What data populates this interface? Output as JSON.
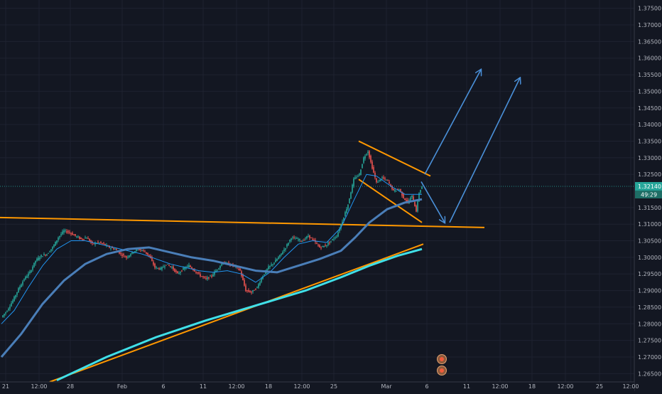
{
  "chart_data": {
    "type": "candlestick",
    "title": "",
    "ylim": [
      1.2625,
      1.3775
    ],
    "y_ticks": [
      1.265,
      1.27,
      1.275,
      1.28,
      1.285,
      1.29,
      1.295,
      1.3,
      1.305,
      1.31,
      1.315,
      1.325,
      1.33,
      1.335,
      1.34,
      1.345,
      1.35,
      1.355,
      1.36,
      1.365,
      1.37,
      1.375
    ],
    "y_tick_labels": [
      "1.26500",
      "1.27000",
      "1.27500",
      "1.28000",
      "1.28500",
      "1.29000",
      "1.29500",
      "1.30000",
      "1.30500",
      "1.31000",
      "1.31500",
      "1.32500",
      "1.33000",
      "1.33500",
      "1.34000",
      "1.34500",
      "1.35000",
      "1.35500",
      "1.36000",
      "1.36500",
      "1.37000",
      "1.37500"
    ],
    "x_ticks": [
      {
        "label": "21",
        "pos": 8
      },
      {
        "label": "12:00",
        "pos": 55
      },
      {
        "label": "28",
        "pos": 99
      },
      {
        "label": "Feb",
        "pos": 172
      },
      {
        "label": "6",
        "pos": 230
      },
      {
        "label": "11",
        "pos": 286
      },
      {
        "label": "12:00",
        "pos": 333
      },
      {
        "label": "18",
        "pos": 378
      },
      {
        "label": "12:00",
        "pos": 425
      },
      {
        "label": "25",
        "pos": 470
      },
      {
        "label": "Mar",
        "pos": 544
      },
      {
        "label": "6",
        "pos": 601
      },
      {
        "label": "11",
        "pos": 657
      },
      {
        "label": "12:00",
        "pos": 704
      },
      {
        "label": "18",
        "pos": 749
      },
      {
        "label": "12:00",
        "pos": 796
      },
      {
        "label": "25",
        "pos": 844
      },
      {
        "label": "12:00",
        "pos": 888
      }
    ],
    "last_price": {
      "label": "1.32140",
      "value": 1.3214,
      "color": "#26a69a"
    },
    "countdown": {
      "label": "49:29"
    },
    "price_path": [
      {
        "x": 2,
        "y": 1.282
      },
      {
        "x": 10,
        "y": 1.284
      },
      {
        "x": 18,
        "y": 1.287
      },
      {
        "x": 26,
        "y": 1.2905
      },
      {
        "x": 34,
        "y": 1.2935
      },
      {
        "x": 42,
        "y": 1.2955
      },
      {
        "x": 50,
        "y": 1.299
      },
      {
        "x": 58,
        "y": 1.3005
      },
      {
        "x": 66,
        "y": 1.301
      },
      {
        "x": 74,
        "y": 1.303
      },
      {
        "x": 82,
        "y": 1.306
      },
      {
        "x": 90,
        "y": 1.308
      },
      {
        "x": 98,
        "y": 1.3075
      },
      {
        "x": 106,
        "y": 1.3065
      },
      {
        "x": 114,
        "y": 1.3055
      },
      {
        "x": 122,
        "y": 1.306
      },
      {
        "x": 130,
        "y": 1.304
      },
      {
        "x": 138,
        "y": 1.3045
      },
      {
        "x": 146,
        "y": 1.304
      },
      {
        "x": 154,
        "y": 1.303
      },
      {
        "x": 162,
        "y": 1.3025
      },
      {
        "x": 170,
        "y": 1.301
      },
      {
        "x": 178,
        "y": 1.3
      },
      {
        "x": 186,
        "y": 1.3015
      },
      {
        "x": 194,
        "y": 1.3025
      },
      {
        "x": 202,
        "y": 1.302
      },
      {
        "x": 210,
        "y": 1.3005
      },
      {
        "x": 218,
        "y": 1.297
      },
      {
        "x": 226,
        "y": 1.2965
      },
      {
        "x": 234,
        "y": 1.298
      },
      {
        "x": 242,
        "y": 1.297
      },
      {
        "x": 250,
        "y": 1.295
      },
      {
        "x": 258,
        "y": 1.2965
      },
      {
        "x": 266,
        "y": 1.2975
      },
      {
        "x": 274,
        "y": 1.296
      },
      {
        "x": 282,
        "y": 1.2945
      },
      {
        "x": 290,
        "y": 1.2935
      },
      {
        "x": 298,
        "y": 1.2945
      },
      {
        "x": 306,
        "y": 1.2965
      },
      {
        "x": 314,
        "y": 1.2985
      },
      {
        "x": 322,
        "y": 1.298
      },
      {
        "x": 330,
        "y": 1.2975
      },
      {
        "x": 338,
        "y": 1.296
      },
      {
        "x": 346,
        "y": 1.29
      },
      {
        "x": 354,
        "y": 1.2895
      },
      {
        "x": 362,
        "y": 1.291
      },
      {
        "x": 370,
        "y": 1.2945
      },
      {
        "x": 378,
        "y": 1.297
      },
      {
        "x": 386,
        "y": 1.2985
      },
      {
        "x": 394,
        "y": 1.3005
      },
      {
        "x": 402,
        "y": 1.303
      },
      {
        "x": 410,
        "y": 1.306
      },
      {
        "x": 418,
        "y": 1.3055
      },
      {
        "x": 426,
        "y": 1.305
      },
      {
        "x": 434,
        "y": 1.3065
      },
      {
        "x": 442,
        "y": 1.305
      },
      {
        "x": 450,
        "y": 1.303
      },
      {
        "x": 458,
        "y": 1.3035
      },
      {
        "x": 466,
        "y": 1.305
      },
      {
        "x": 474,
        "y": 1.3065
      },
      {
        "x": 482,
        "y": 1.311
      },
      {
        "x": 490,
        "y": 1.316
      },
      {
        "x": 498,
        "y": 1.3235
      },
      {
        "x": 506,
        "y": 1.325
      },
      {
        "x": 512,
        "y": 1.33
      },
      {
        "x": 518,
        "y": 1.332
      },
      {
        "x": 524,
        "y": 1.327
      },
      {
        "x": 530,
        "y": 1.3225
      },
      {
        "x": 538,
        "y": 1.324
      },
      {
        "x": 546,
        "y": 1.323
      },
      {
        "x": 554,
        "y": 1.32
      },
      {
        "x": 562,
        "y": 1.3205
      },
      {
        "x": 568,
        "y": 1.318
      },
      {
        "x": 574,
        "y": 1.3165
      },
      {
        "x": 580,
        "y": 1.3185
      },
      {
        "x": 586,
        "y": 1.314
      },
      {
        "x": 590,
        "y": 1.3195
      },
      {
        "x": 594,
        "y": 1.3214
      }
    ],
    "moving_averages": [
      {
        "color": "#2196f3",
        "width": 1,
        "points": [
          {
            "x": 2,
            "y": 1.28
          },
          {
            "x": 20,
            "y": 1.284
          },
          {
            "x": 40,
            "y": 1.291
          },
          {
            "x": 60,
            "y": 1.2975
          },
          {
            "x": 80,
            "y": 1.3025
          },
          {
            "x": 100,
            "y": 1.305
          },
          {
            "x": 120,
            "y": 1.305
          },
          {
            "x": 140,
            "y": 1.304
          },
          {
            "x": 160,
            "y": 1.303
          },
          {
            "x": 180,
            "y": 1.302
          },
          {
            "x": 200,
            "y": 1.301
          },
          {
            "x": 220,
            "y": 1.2995
          },
          {
            "x": 240,
            "y": 1.298
          },
          {
            "x": 260,
            "y": 1.297
          },
          {
            "x": 280,
            "y": 1.296
          },
          {
            "x": 300,
            "y": 1.2955
          },
          {
            "x": 320,
            "y": 1.296
          },
          {
            "x": 340,
            "y": 1.295
          },
          {
            "x": 360,
            "y": 1.2925
          },
          {
            "x": 380,
            "y": 1.2955
          },
          {
            "x": 400,
            "y": 1.3
          },
          {
            "x": 420,
            "y": 1.304
          },
          {
            "x": 440,
            "y": 1.305
          },
          {
            "x": 460,
            "y": 1.3045
          },
          {
            "x": 480,
            "y": 1.309
          },
          {
            "x": 500,
            "y": 1.318
          },
          {
            "x": 516,
            "y": 1.325
          },
          {
            "x": 530,
            "y": 1.3245
          },
          {
            "x": 550,
            "y": 1.3215
          },
          {
            "x": 570,
            "y": 1.319
          },
          {
            "x": 594,
            "y": 1.319
          }
        ]
      },
      {
        "color": "#4a7eb8",
        "width": 3,
        "points": [
          {
            "x": 2,
            "y": 1.27
          },
          {
            "x": 30,
            "y": 1.277
          },
          {
            "x": 60,
            "y": 1.286
          },
          {
            "x": 90,
            "y": 1.293
          },
          {
            "x": 120,
            "y": 1.298
          },
          {
            "x": 150,
            "y": 1.301
          },
          {
            "x": 180,
            "y": 1.3025
          },
          {
            "x": 210,
            "y": 1.303
          },
          {
            "x": 240,
            "y": 1.3015
          },
          {
            "x": 270,
            "y": 1.3
          },
          {
            "x": 300,
            "y": 1.299
          },
          {
            "x": 330,
            "y": 1.2975
          },
          {
            "x": 360,
            "y": 1.296
          },
          {
            "x": 390,
            "y": 1.2955
          },
          {
            "x": 420,
            "y": 1.2975
          },
          {
            "x": 450,
            "y": 1.2995
          },
          {
            "x": 480,
            "y": 1.302
          },
          {
            "x": 500,
            "y": 1.306
          },
          {
            "x": 520,
            "y": 1.3105
          },
          {
            "x": 545,
            "y": 1.3145
          },
          {
            "x": 570,
            "y": 1.3165
          },
          {
            "x": 594,
            "y": 1.3175
          }
        ]
      },
      {
        "color": "#40e0e8",
        "width": 3,
        "points": [
          {
            "x": 80,
            "y": 1.263
          },
          {
            "x": 150,
            "y": 1.27
          },
          {
            "x": 220,
            "y": 1.276
          },
          {
            "x": 290,
            "y": 1.281
          },
          {
            "x": 360,
            "y": 1.2855
          },
          {
            "x": 430,
            "y": 1.29
          },
          {
            "x": 480,
            "y": 1.294
          },
          {
            "x": 520,
            "y": 1.2975
          },
          {
            "x": 560,
            "y": 1.3005
          },
          {
            "x": 594,
            "y": 1.3025
          }
        ]
      }
    ],
    "drawings": [
      {
        "type": "line",
        "color": "#ff9800",
        "x1": 0,
        "y1": 1.312,
        "x2": 682,
        "y2": 1.309
      },
      {
        "type": "line",
        "color": "#ff9800",
        "x1": 70,
        "y1": 1.2625,
        "x2": 596,
        "y2": 1.304
      },
      {
        "type": "line",
        "color": "#ff9800",
        "x1": 505,
        "y1": 1.335,
        "x2": 606,
        "y2": 1.3245
      },
      {
        "type": "line",
        "color": "#ff9800",
        "x1": 505,
        "y1": 1.3235,
        "x2": 594,
        "y2": 1.3105
      },
      {
        "type": "arrow",
        "color": "#4a90d9",
        "x1": 593,
        "y1": 1.3228,
        "x2": 626,
        "y2": 1.3105
      },
      {
        "type": "arrow",
        "color": "#4a90d9",
        "x1": 598,
        "y1": 1.325,
        "x2": 677,
        "y2": 1.3565
      },
      {
        "type": "arrow",
        "color": "#4a90d9",
        "x1": 633,
        "y1": 1.3105,
        "x2": 732,
        "y2": 1.354
      }
    ]
  }
}
